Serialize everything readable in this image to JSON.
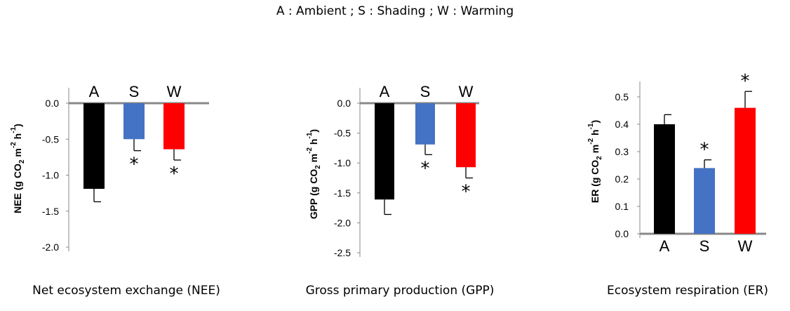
{
  "header": {
    "legend": "A : Ambient ; S : Shading ; W : Warming"
  },
  "captions": [
    "Net ecosystem exchange (NEE)",
    "Gross primary production (GPP)",
    "Ecosystem respiration (ER)"
  ],
  "colors": {
    "A": "#000000",
    "S": "#4472c4",
    "W": "#ff0000",
    "axis": "#888888"
  },
  "chart_data": [
    {
      "type": "bar",
      "categories": [
        "A",
        "S",
        "W"
      ],
      "values": [
        -1.19,
        -0.5,
        -0.64
      ],
      "errors": [
        0.18,
        0.16,
        0.15
      ],
      "significant": [
        false,
        true,
        true
      ],
      "ylabel_parts": [
        "NEE (g CO",
        "2",
        " m",
        "-2",
        " h",
        "-1",
        ")"
      ],
      "yticks": [
        "0.0",
        "-0.5",
        "-1.0",
        "-1.5",
        "-2.0"
      ],
      "ylim": [
        -2.0,
        0.0
      ],
      "category_labels_position": "top"
    },
    {
      "type": "bar",
      "categories": [
        "A",
        "S",
        "W"
      ],
      "values": [
        -1.61,
        -0.69,
        -1.07
      ],
      "errors": [
        0.25,
        0.17,
        0.18
      ],
      "significant": [
        false,
        true,
        true
      ],
      "ylabel_parts": [
        "GPP (g CO",
        "2",
        " m",
        "-2",
        " h",
        "-1",
        ")"
      ],
      "yticks": [
        "0.0",
        "-0.5",
        "-1.0",
        "-1.5",
        "-2.0",
        "-2.5"
      ],
      "ylim": [
        -2.5,
        0.0
      ],
      "category_labels_position": "top"
    },
    {
      "type": "bar",
      "categories": [
        "A",
        "S",
        "W"
      ],
      "values": [
        0.4,
        0.24,
        0.46
      ],
      "errors": [
        0.035,
        0.03,
        0.06
      ],
      "significant": [
        false,
        true,
        true
      ],
      "ylabel_parts": [
        "ER (g CO",
        "2",
        " m",
        "-2",
        " h",
        "-1",
        ")"
      ],
      "yticks": [
        "0.0",
        "0.1",
        "0.2",
        "0.3",
        "0.4",
        "0.5"
      ],
      "ylim": [
        0.0,
        0.5
      ],
      "category_labels_position": "bottom"
    }
  ]
}
